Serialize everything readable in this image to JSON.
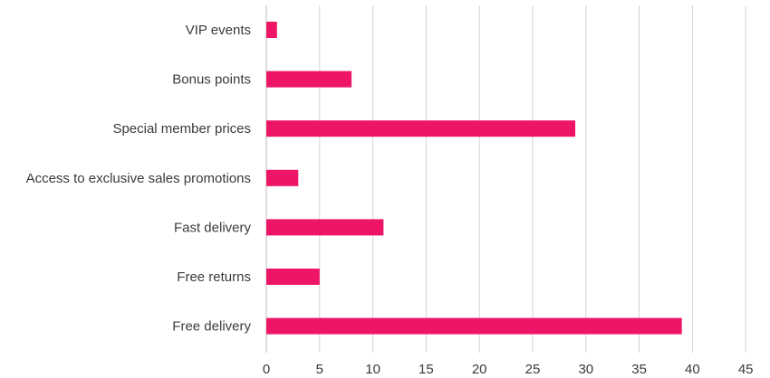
{
  "chart_data": {
    "type": "bar",
    "orientation": "horizontal",
    "title": "",
    "xlabel": "",
    "ylabel": "",
    "categories": [
      "VIP events",
      "Bonus points",
      "Special member prices",
      "Access to exclusive sales promotions",
      "Fast delivery",
      "Free returns",
      "Free delivery"
    ],
    "values": [
      1,
      8,
      29,
      3,
      11,
      5,
      39
    ],
    "xlim": [
      0,
      45
    ],
    "xticks": [
      0,
      5,
      10,
      15,
      20,
      25,
      30,
      35,
      40,
      45
    ],
    "xtick_labels": [
      "0",
      "5",
      "10",
      "15",
      "20",
      "25",
      "30",
      "35",
      "40",
      "45"
    ],
    "grid": "vertical",
    "legend": "none",
    "colors": {
      "bar": "#ee1566",
      "grid": "#d3d3d3",
      "text": "#3a3a3a"
    }
  }
}
